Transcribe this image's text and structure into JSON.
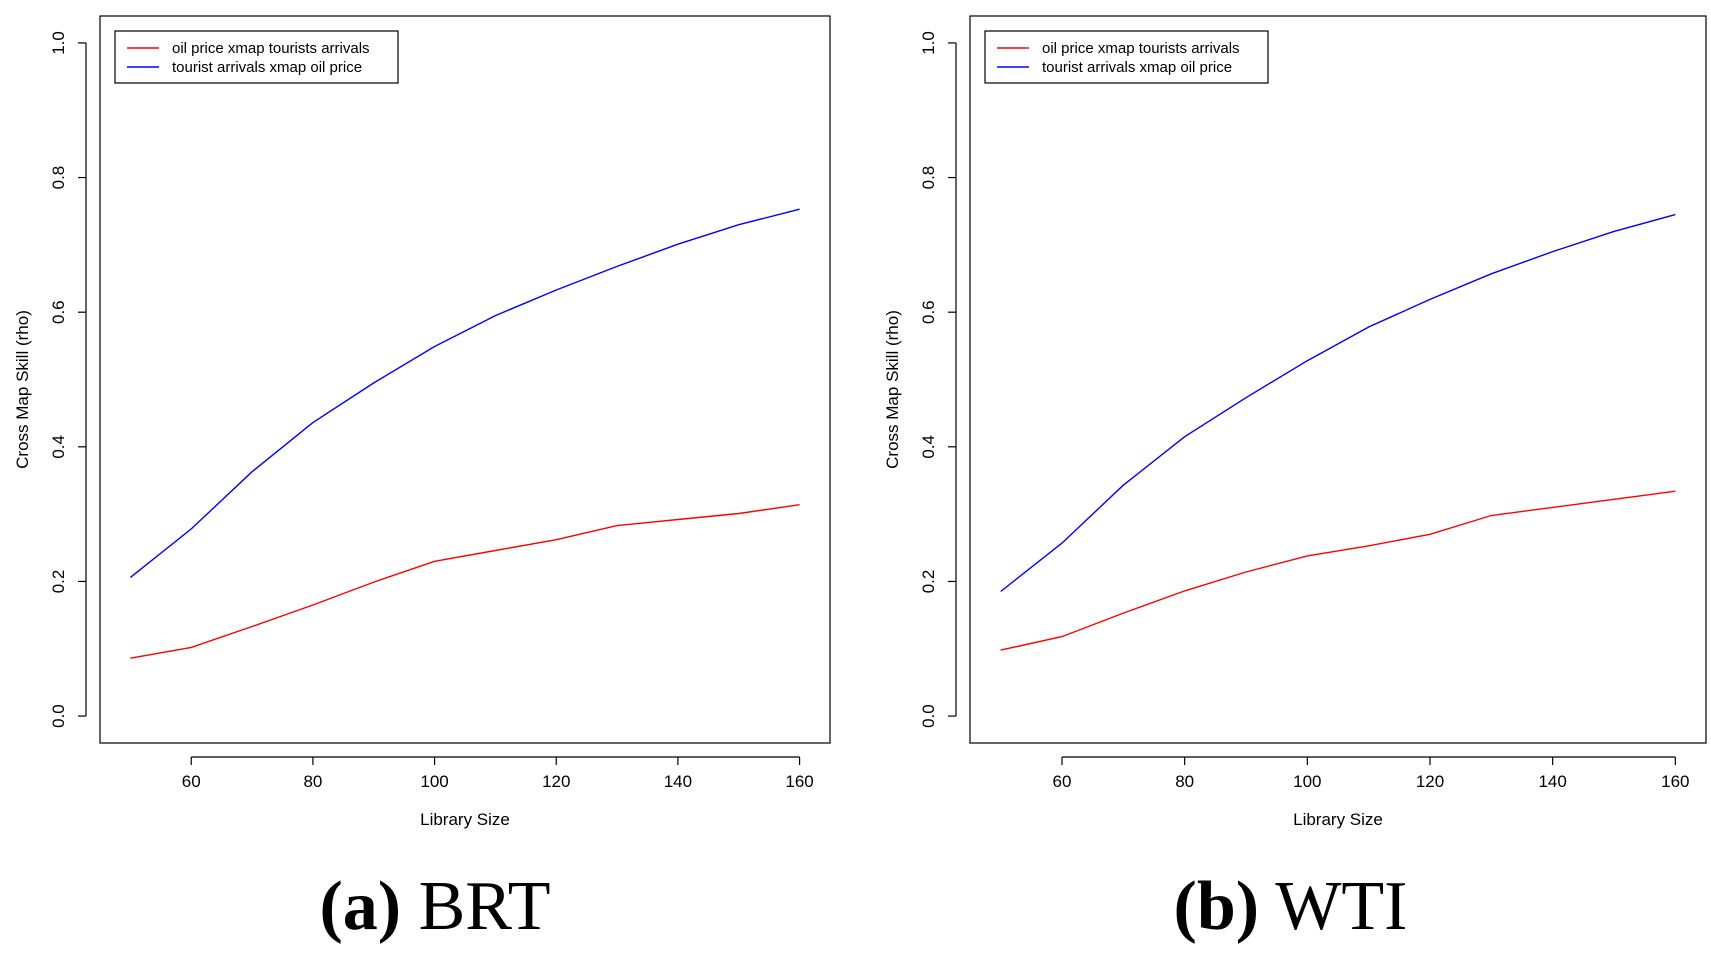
{
  "chart_data": [
    {
      "type": "line",
      "caption_label": "(a)",
      "caption_text": "BRT",
      "xlabel": "Library Size",
      "ylabel": "Cross Map Skill (rho)",
      "xlim": [
        45,
        165
      ],
      "ylim": [
        -0.04,
        1.04
      ],
      "xticks": [
        60,
        80,
        100,
        120,
        140,
        160
      ],
      "yticks": [
        "0.0",
        "0.2",
        "0.4",
        "0.6",
        "0.8",
        "1.0"
      ],
      "legend_position": "top-left",
      "x": [
        50,
        60,
        70,
        80,
        90,
        100,
        110,
        120,
        130,
        140,
        150,
        160
      ],
      "series": [
        {
          "name": "oil price xmap tourists arrivals",
          "color": "#ff0000",
          "values": [
            0.086,
            0.102,
            0.133,
            0.165,
            0.199,
            0.23,
            0.246,
            0.262,
            0.283,
            0.292,
            0.301,
            0.314
          ]
        },
        {
          "name": "tourist arrivals xmap oil price",
          "color": "#0000ff",
          "values": [
            0.206,
            0.278,
            0.363,
            0.436,
            0.495,
            0.549,
            0.595,
            0.633,
            0.668,
            0.701,
            0.73,
            0.753
          ]
        }
      ]
    },
    {
      "type": "line",
      "caption_label": "(b)",
      "caption_text": "WTI",
      "xlabel": "Library Size",
      "ylabel": "Cross Map Skill (rho)",
      "xlim": [
        45,
        165
      ],
      "ylim": [
        -0.04,
        1.04
      ],
      "xticks": [
        60,
        80,
        100,
        120,
        140,
        160
      ],
      "yticks": [
        "0.0",
        "0.2",
        "0.4",
        "0.6",
        "0.8",
        "1.0"
      ],
      "legend_position": "top-left",
      "x": [
        50,
        60,
        70,
        80,
        90,
        100,
        110,
        120,
        130,
        140,
        150,
        160
      ],
      "series": [
        {
          "name": "oil price xmap tourists arrivals",
          "color": "#ff0000",
          "values": [
            0.098,
            0.118,
            0.153,
            0.186,
            0.214,
            0.238,
            0.253,
            0.27,
            0.298,
            0.31,
            0.322,
            0.334
          ]
        },
        {
          "name": "tourist arrivals xmap oil price",
          "color": "#0000ff",
          "values": [
            0.185,
            0.257,
            0.343,
            0.415,
            0.473,
            0.528,
            0.578,
            0.619,
            0.657,
            0.69,
            0.72,
            0.745
          ]
        }
      ]
    }
  ]
}
